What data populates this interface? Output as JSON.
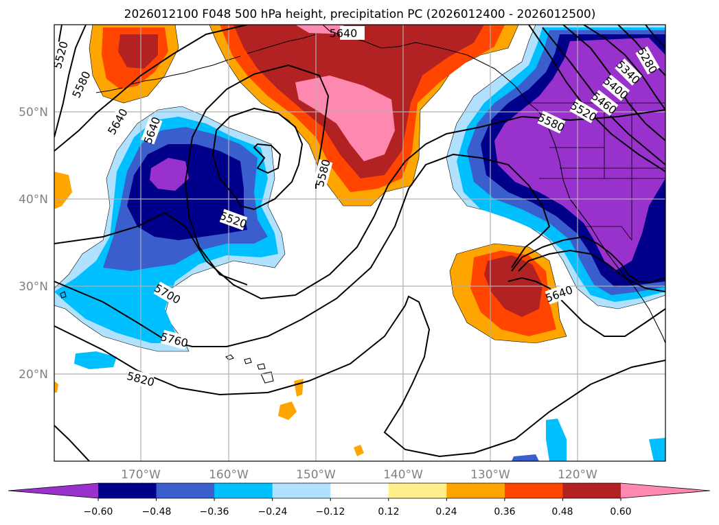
{
  "title": "2026012100 F048 500 hPa height, precipitation PC (2026012400 - 2026012500)",
  "map": {
    "lat_labels": [
      "50°N",
      "40°N",
      "30°N",
      "20°N"
    ],
    "lon_labels": [
      "170°W",
      "160°W",
      "150°W",
      "140°W",
      "130°W",
      "120°W"
    ],
    "contour_labels": [
      "5520",
      "5580",
      "5640",
      "5640",
      "5640",
      "5580",
      "5520",
      "5700",
      "5760",
      "5820",
      "5640",
      "5280",
      "5340",
      "5400",
      "5460",
      "5520",
      "5580"
    ]
  },
  "colorbar": {
    "tick_labels": [
      "−0.60",
      "−0.48",
      "−0.36",
      "−0.24",
      "−0.12",
      "0.12",
      "0.24",
      "0.36",
      "0.48",
      "0.60"
    ],
    "colors": [
      "#9932cc",
      "#00008b",
      "#3a5fcd",
      "#00bfff",
      "#b0e2ff",
      "#ffffff",
      "#fff08c",
      "#ffa500",
      "#ff4500",
      "#b22222",
      "#ff88b0"
    ]
  },
  "colors": {
    "frame": "#000000",
    "grid": "#b0b0b0",
    "contour": "#000000"
  }
}
